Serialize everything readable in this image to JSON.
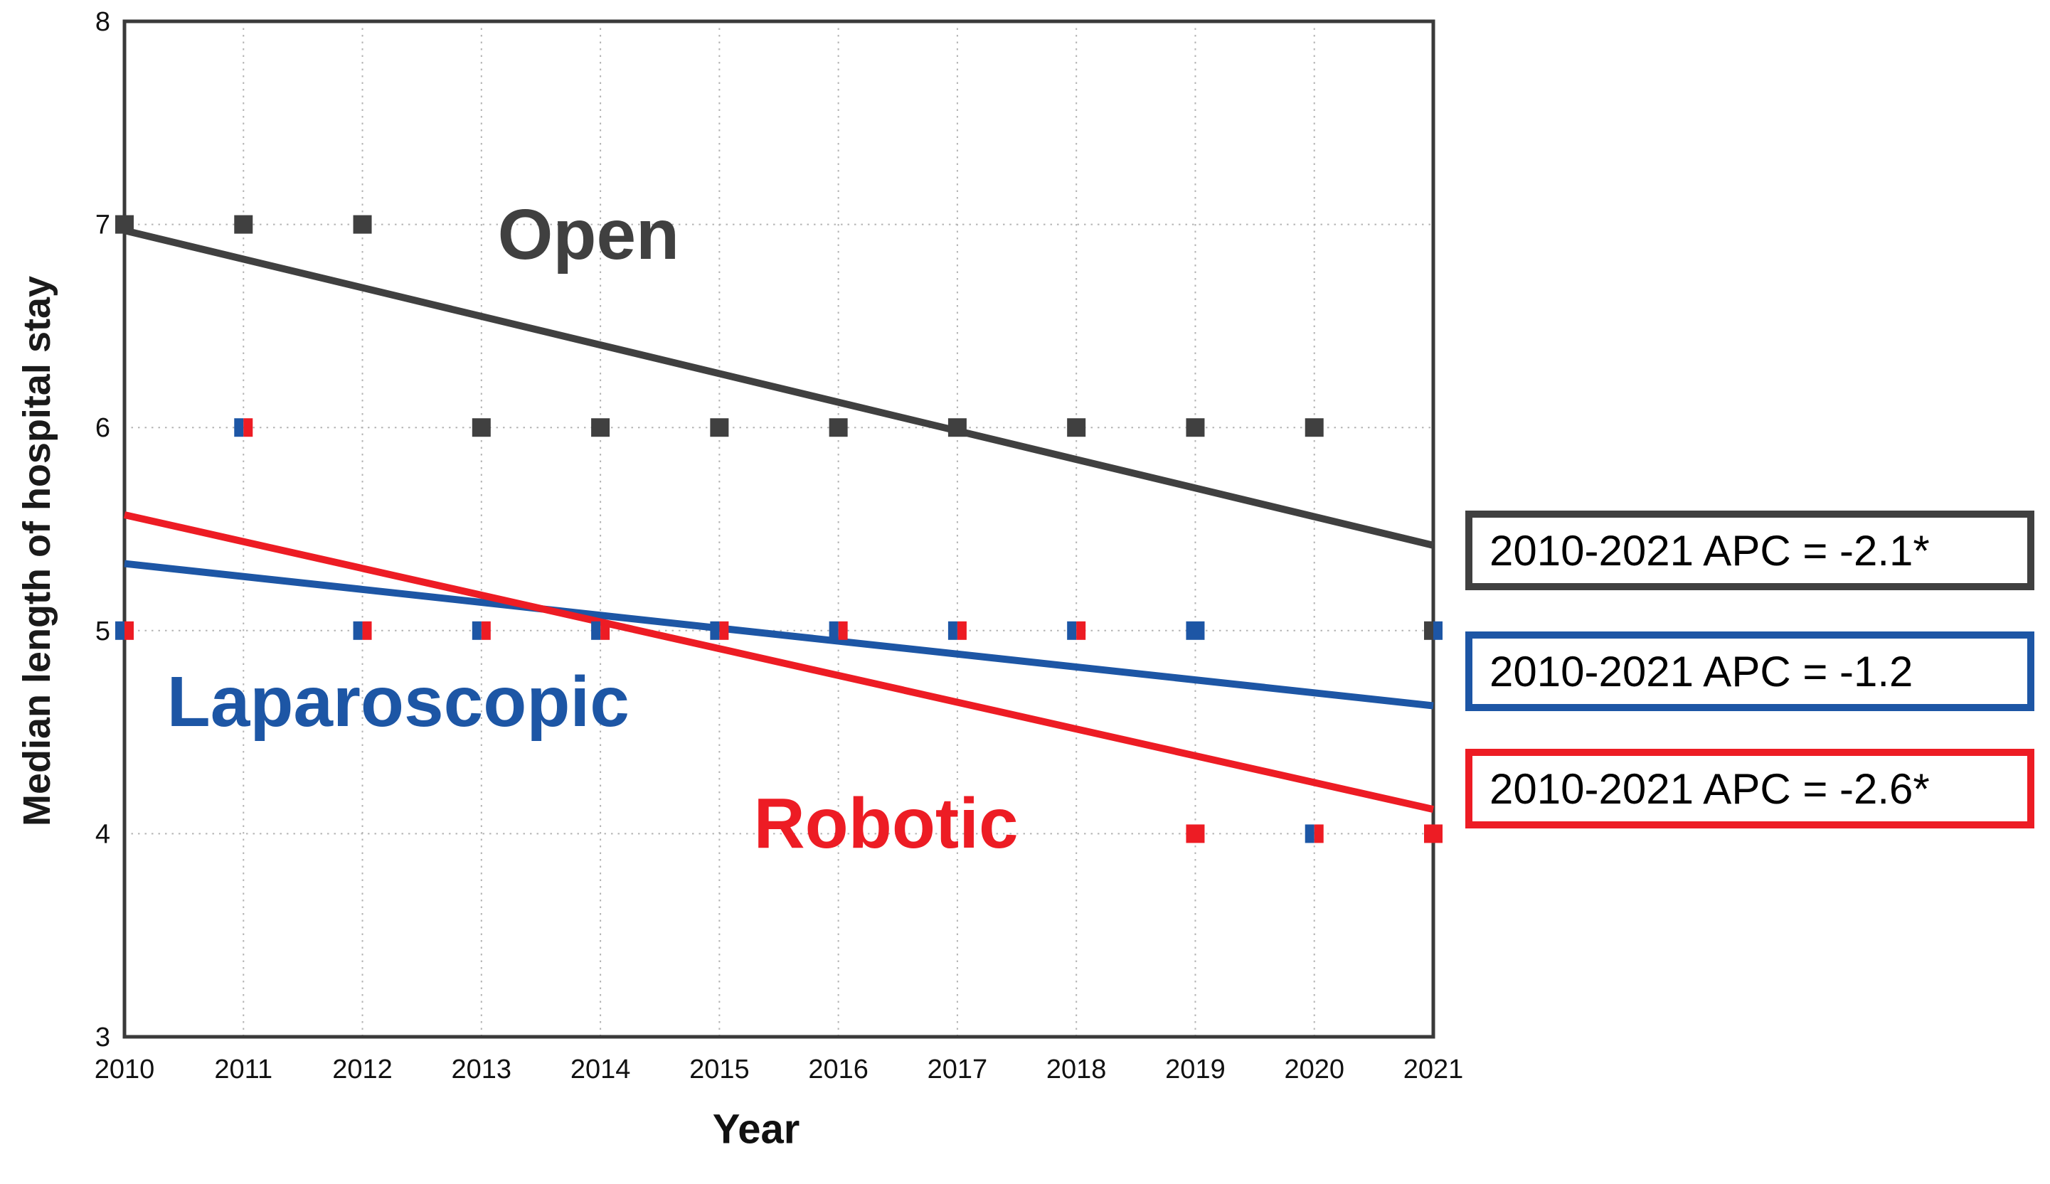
{
  "chart_data": {
    "type": "scatter",
    "title": "",
    "xlabel": "Year",
    "ylabel": "Median length of hospital stay",
    "x": [
      2010,
      2011,
      2012,
      2013,
      2014,
      2015,
      2016,
      2017,
      2018,
      2019,
      2020,
      2021
    ],
    "xlim": [
      2010,
      2021
    ],
    "ylim": [
      3,
      8
    ],
    "yticks": [
      3,
      4,
      5,
      6,
      7,
      8
    ],
    "grid": true,
    "legend_position": "right-outside",
    "series": [
      {
        "name": "Open",
        "color": "#404040",
        "values": [
          7,
          7,
          7,
          6,
          6,
          6,
          6,
          6,
          6,
          6,
          6,
          5
        ],
        "trendline": {
          "x": [
            2010,
            2021
          ],
          "y": [
            6.97,
            5.42
          ]
        },
        "inline_label": {
          "text": "Open",
          "x": 2013.9,
          "y": 6.95
        },
        "apc_text": "2010-2021 APC = -2.1*"
      },
      {
        "name": "Laparoscopic",
        "color": "#1d56a5",
        "values": [
          5,
          6,
          5,
          5,
          5,
          5,
          5,
          5,
          5,
          5,
          4,
          5
        ],
        "trendline": {
          "x": [
            2010,
            2021
          ],
          "y": [
            5.33,
            4.63
          ]
        },
        "inline_label": {
          "text": "Laparoscopic",
          "x": 2012.3,
          "y": 4.65
        },
        "apc_text": "2010-2021 APC = -1.2"
      },
      {
        "name": "Robotic",
        "color": "#ed1c24",
        "values": [
          5,
          6,
          5,
          5,
          5,
          5,
          5,
          5,
          5,
          4,
          4,
          4
        ],
        "trendline": {
          "x": [
            2010,
            2021
          ],
          "y": [
            5.57,
            4.12
          ]
        },
        "inline_label": {
          "text": "Robotic",
          "x": 2016.4,
          "y": 4.05
        },
        "apc_text": "2010-2021 APC = -2.6*"
      }
    ]
  },
  "colors": {
    "background": "#ffffff",
    "frame": "#3a3a3a",
    "grid": "#b3b3b3",
    "tick_text": "#111111"
  }
}
